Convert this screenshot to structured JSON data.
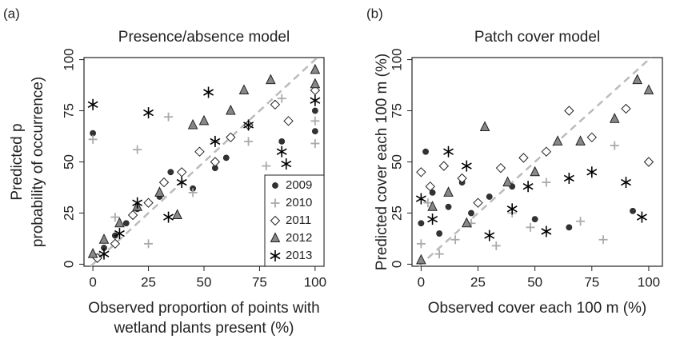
{
  "chart_data": [
    {
      "type": "scatter",
      "panel_label": "(a)",
      "title": "Presence/absence model",
      "x_label": [
        "Observed proportion of points with",
        "wetland plants present (%)"
      ],
      "y_label": [
        "Predicted p",
        "probability of occurrence)"
      ],
      "xlim": [
        -4,
        104
      ],
      "ylim": [
        -1,
        101
      ],
      "xticks": [
        0,
        25,
        50,
        75,
        100
      ],
      "yticks": [
        0,
        25,
        50,
        75,
        100
      ],
      "identity_line": true,
      "legend": "lower right",
      "series": [
        {
          "name": "2009",
          "color": "#333333",
          "marker": "circle",
          "x": [
            0,
            5,
            10,
            15,
            20,
            30,
            35,
            45,
            55,
            60,
            85,
            100,
            100
          ],
          "y": [
            64,
            8,
            14,
            20,
            27,
            33,
            45,
            37,
            47,
            52,
            60,
            75,
            65
          ]
        },
        {
          "name": "2010",
          "color": "#aaaaaa",
          "marker": "plus",
          "x": [
            0,
            3,
            10,
            20,
            25,
            34,
            45,
            55,
            70,
            78,
            85,
            100,
            100
          ],
          "y": [
            61,
            4,
            23,
            56,
            10,
            72,
            35,
            60,
            60,
            48,
            81,
            59,
            70
          ]
        },
        {
          "name": "2011",
          "color": "#ffffff",
          "marker": "diamond",
          "x": [
            2,
            10,
            18,
            25,
            32,
            40,
            48,
            55,
            62,
            70,
            82,
            88,
            100
          ],
          "y": [
            3,
            10,
            24,
            30,
            40,
            45,
            55,
            50,
            62,
            68,
            78,
            70,
            85
          ]
        },
        {
          "name": "2012",
          "color": "#888888",
          "marker": "triangle",
          "x": [
            0,
            5,
            12,
            20,
            30,
            38,
            45,
            50,
            62,
            68,
            80,
            100,
            100
          ],
          "y": [
            5,
            12,
            20,
            28,
            35,
            24,
            68,
            70,
            75,
            85,
            90,
            95,
            88
          ]
        },
        {
          "name": "2013",
          "color": "#000000",
          "marker": "asterisk",
          "x": [
            0,
            5,
            12,
            20,
            25,
            34,
            40,
            52,
            55,
            70,
            85,
            87,
            100
          ],
          "y": [
            78,
            5,
            15,
            30,
            74,
            23,
            40,
            84,
            60,
            68,
            55,
            49,
            80
          ]
        }
      ]
    },
    {
      "type": "scatter",
      "panel_label": "(b)",
      "title": "Patch cover model",
      "x_label": [
        "Observed cover each 100 m (%)"
      ],
      "y_label": [
        "Predicted cover each 100 m (%)"
      ],
      "xlim": [
        -4,
        106
      ],
      "ylim": [
        -1,
        101
      ],
      "xticks": [
        0,
        25,
        50,
        75,
        100
      ],
      "yticks": [
        0,
        25,
        50,
        75,
        100
      ],
      "identity_line": true,
      "series": [
        {
          "color": "#333333",
          "marker": "circle",
          "x": [
            0,
            2,
            5,
            8,
            12,
            18,
            22,
            30,
            40,
            50,
            65,
            93
          ],
          "y": [
            20,
            55,
            35,
            15,
            28,
            40,
            25,
            33,
            38,
            22,
            18,
            26
          ]
        },
        {
          "color": "#aaaaaa",
          "marker": "plus",
          "x": [
            0,
            3,
            8,
            15,
            22,
            33,
            40,
            48,
            55,
            70,
            80,
            85
          ],
          "y": [
            10,
            30,
            5,
            12,
            20,
            9,
            25,
            18,
            40,
            21,
            12,
            58
          ]
        },
        {
          "color": "#ffffff",
          "marker": "diamond",
          "x": [
            0,
            4,
            10,
            18,
            25,
            35,
            45,
            55,
            65,
            75,
            90,
            100
          ],
          "y": [
            45,
            38,
            48,
            42,
            30,
            47,
            52,
            55,
            75,
            62,
            76,
            50
          ]
        },
        {
          "color": "#888888",
          "marker": "triangle",
          "x": [
            0,
            5,
            12,
            20,
            28,
            38,
            50,
            60,
            70,
            85,
            95,
            100
          ],
          "y": [
            2,
            28,
            35,
            20,
            67,
            40,
            45,
            60,
            60,
            71,
            90,
            85
          ]
        },
        {
          "color": "#000000",
          "marker": "asterisk",
          "x": [
            0,
            5,
            12,
            20,
            30,
            40,
            47,
            55,
            65,
            75,
            90,
            97
          ],
          "y": [
            32,
            22,
            55,
            48,
            14,
            27,
            38,
            16,
            42,
            45,
            40,
            23
          ]
        }
      ]
    }
  ]
}
